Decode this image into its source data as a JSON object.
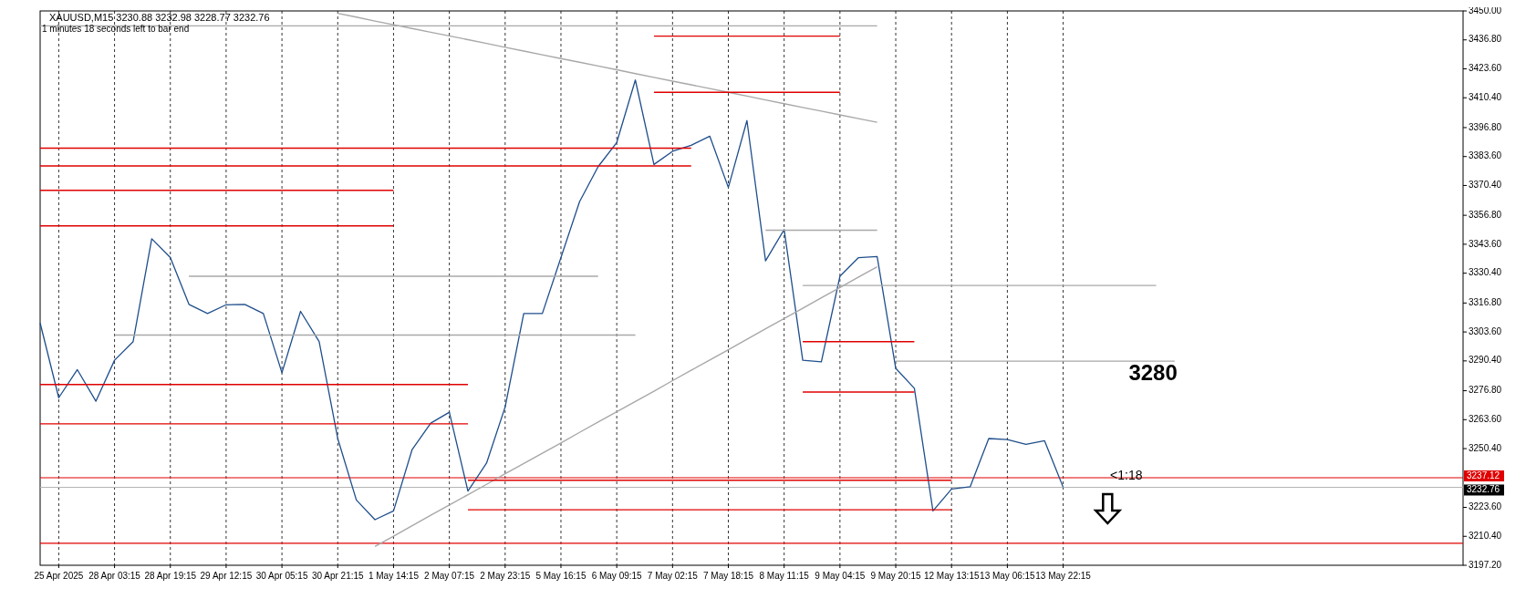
{
  "chart_data": {
    "type": "line",
    "title": "XAUUSD,M15  3230.88 3232.98 3228.77 3232.76",
    "subtitle": "1 minutes 18 seconds left to bar end",
    "categories": [
      null,
      "25 Apr 2025",
      null,
      null,
      "28 Apr 03:15",
      null,
      null,
      "28 Apr 19:15",
      null,
      null,
      "29 Apr 12:15",
      null,
      null,
      "30 Apr 05:15",
      null,
      null,
      "30 Apr 21:15",
      null,
      null,
      "1 May 14:15",
      null,
      null,
      "2 May 07:15",
      null,
      null,
      "2 May 23:15",
      null,
      null,
      "5 May 16:15",
      null,
      null,
      "6 May 09:15",
      null,
      null,
      "7 May 02:15",
      null,
      null,
      "7 May 18:15",
      null,
      null,
      "8 May 11:15",
      null,
      null,
      "9 May 04:15",
      null,
      null,
      "9 May 20:15",
      null,
      null,
      "12 May 13:15",
      null,
      null,
      "13 May 06:15",
      null,
      null,
      "13 May 22:15",
      null,
      null,
      null,
      null,
      null,
      null,
      null,
      null,
      null,
      null,
      null,
      null,
      null,
      null,
      null,
      null,
      null,
      null,
      null,
      null,
      null
    ],
    "ylim": [
      3197.2,
      3450
    ],
    "yticks": [
      {
        "value": 3450,
        "label": "3450.00"
      },
      {
        "value": 3436.8,
        "label": "3436.80"
      },
      {
        "value": 3423.6,
        "label": "3423.60"
      },
      {
        "value": 3410.4,
        "label": "3410.40"
      },
      {
        "value": 3396.8,
        "label": "3396.80"
      },
      {
        "value": 3383.6,
        "label": "3383.60"
      },
      {
        "value": 3370.4,
        "label": "3370.40"
      },
      {
        "value": 3356.8,
        "label": "3356.80"
      },
      {
        "value": 3343.6,
        "label": "3343.60"
      },
      {
        "value": 3330.4,
        "label": "3330.40"
      },
      {
        "value": 3316.8,
        "label": "3316.80"
      },
      {
        "value": 3303.6,
        "label": "3303.60"
      },
      {
        "value": 3290.4,
        "label": "3290.40"
      },
      {
        "value": 3276.8,
        "label": "3276.80"
      },
      {
        "value": 3263.6,
        "label": "3263.60"
      },
      {
        "value": 3250.4,
        "label": "3250.40"
      },
      {
        "value": 3223.6,
        "label": "3223.60"
      },
      {
        "value": 3210.4,
        "label": "3210.40"
      },
      {
        "value": 3197.2,
        "label": "3197.20"
      }
    ],
    "grid": "x",
    "marker": "none",
    "line_style": "solid",
    "ref_lines": [
      {
        "axis": "y",
        "value": 3237.12,
        "label": "3237.12",
        "color": "#e00000"
      },
      {
        "axis": "y",
        "value": 3232.76,
        "label": "3232.76",
        "color": "#b4b4b4"
      },
      {
        "axis": "y",
        "value": 3207.2,
        "label": null,
        "color": "#e00000"
      }
    ],
    "annotations": [
      "3280",
      "<1:18"
    ],
    "series": [
      {
        "color": "#1f4e8c",
        "values": [
          3307.7,
          3273.6,
          3286.4,
          3272,
          3290.7,
          3299.2,
          3346.1,
          3337.5,
          3316.2,
          3312,
          3316,
          3316.2,
          3312,
          3285,
          3313,
          3299.2,
          3255,
          3227,
          3218,
          3222,
          3250,
          3262,
          3267,
          3231,
          3243.8,
          3269.4,
          3312,
          3312,
          3337.5,
          3363,
          3379,
          3390,
          3418.5,
          3380,
          3386,
          3388.7,
          3392.9,
          3369.5,
          3400,
          3336,
          3350.3,
          3290.7,
          3290,
          3329,
          3337.5,
          3338,
          3287,
          3277.9,
          3222,
          3232,
          3233,
          3255,
          3254.5,
          3252.3,
          3254,
          3232.8,
          null,
          null,
          null,
          null,
          null,
          null,
          null,
          null,
          null,
          null,
          null,
          null,
          null,
          null,
          null,
          null,
          null,
          null,
          null,
          null,
          null
        ]
      },
      {
        "color": "#a8a8a8",
        "values": [
          null,
          null,
          null,
          null,
          null,
          null,
          null,
          null,
          null,
          null,
          null,
          null,
          null,
          null,
          null,
          null,
          null,
          null,
          3205.8,
          3210.5,
          3215.2,
          3220,
          3224.7,
          3229.4,
          3234.1,
          3238.9,
          3243.6,
          3248.3,
          3253,
          3257.8,
          3262.5,
          3267.2,
          3271.9,
          3276.6,
          3281.4,
          3286.1,
          3290.8,
          3295.5,
          3300.3,
          3305,
          3309.7,
          3314.4,
          3319.2,
          3323.9,
          3328.6,
          3333.3,
          null,
          null,
          null,
          null,
          null,
          null,
          null,
          null,
          null,
          null,
          null,
          null,
          null,
          null,
          null,
          null,
          null,
          null,
          null,
          null,
          null,
          null,
          null,
          null,
          null,
          null,
          null,
          null,
          null,
          null,
          null
        ]
      },
      {
        "color": "#a8a8a8",
        "values": [
          null,
          null,
          null,
          null,
          null,
          null,
          null,
          null,
          null,
          null,
          null,
          null,
          null,
          null,
          null,
          null,
          3448.9,
          3447.2,
          3445.4,
          3443.7,
          3442,
          3440.3,
          3438.6,
          3436.9,
          3435.2,
          3433.4,
          3431.7,
          3430,
          3428.3,
          3426.6,
          3424.9,
          3423.2,
          3421.4,
          3419.7,
          3418,
          3416.3,
          3414.6,
          3412.9,
          3411.2,
          3409.4,
          3407.7,
          3406,
          3404.3,
          3402.6,
          3400.9,
          3399.2,
          null,
          null,
          null,
          null,
          null,
          null,
          null,
          null,
          null,
          null,
          null,
          null,
          null,
          null,
          null,
          null,
          null,
          null,
          null,
          null,
          null,
          null,
          null,
          null,
          null,
          null,
          null,
          null,
          null,
          null,
          null
        ]
      },
      {
        "color": "#a8a8a8",
        "values": [
          3443.2,
          3443.2,
          3443.2,
          3443.2,
          3443.2,
          3443.2,
          3443.2,
          3443.2,
          3443.2,
          3443.2,
          3443.2,
          3443.2,
          3443.2,
          3443.2,
          3443.2,
          3443.2,
          3443.2,
          3443.2,
          3443.2,
          3443.2,
          3443.2,
          3443.2,
          3443.2,
          3443.2,
          3443.2,
          3443.2,
          3443.2,
          3443.2,
          3443.2,
          3443.2,
          3443.2,
          3443.2,
          3443.2,
          3443.2,
          3443.2,
          3443.2,
          3443.2,
          3443.2,
          3443.2,
          3443.2,
          3443.2,
          3443.2,
          3443.2,
          3443.2,
          3443.2,
          3443.2,
          null,
          null,
          null,
          null,
          null,
          null,
          null,
          null,
          null,
          null,
          null,
          null,
          null,
          null,
          null,
          null,
          null,
          null,
          null,
          null,
          null,
          null,
          null,
          null,
          null,
          null,
          null,
          null,
          null,
          null,
          null
        ]
      },
      {
        "color": "#a8a8a8",
        "values": [
          null,
          null,
          null,
          null,
          3302.2,
          3302.2,
          3302.2,
          3302.2,
          3302.2,
          3302.2,
          3302.2,
          3302.2,
          3302.2,
          3302.2,
          3302.2,
          3302.2,
          3302.2,
          3302.2,
          3302.2,
          3302.2,
          3302.2,
          3302.2,
          3302.2,
          3302.2,
          3302.2,
          3302.2,
          3302.2,
          3302.2,
          3302.2,
          3302.2,
          3302.2,
          3302.2,
          3302.2,
          null,
          null,
          null,
          null,
          null,
          null,
          null,
          null,
          null,
          null,
          null,
          null,
          null,
          null,
          null,
          null,
          null,
          null,
          null,
          null,
          null,
          null,
          null,
          null,
          null,
          null,
          null,
          null,
          null,
          null,
          null,
          null,
          null,
          null,
          null,
          null,
          null,
          null,
          null,
          null,
          null,
          null,
          null,
          null
        ]
      },
      {
        "color": "#a8a8a8",
        "values": [
          null,
          null,
          null,
          null,
          null,
          null,
          null,
          null,
          3329,
          3329,
          3329,
          3329,
          3329,
          3329,
          3329,
          3329,
          3329,
          3329,
          3329,
          3329,
          3329,
          3329,
          3329,
          3329,
          3329,
          3329,
          3329,
          3329,
          3329,
          3329,
          3329,
          null,
          null,
          null,
          null,
          null,
          null,
          null,
          null,
          null,
          null,
          null,
          null,
          null,
          null,
          null,
          null,
          null,
          null,
          null,
          null,
          null,
          null,
          null,
          null,
          null,
          null,
          null,
          null,
          null,
          null,
          null,
          null,
          null,
          null,
          null,
          null,
          null,
          null,
          null,
          null,
          null,
          null,
          null,
          null,
          null,
          null
        ]
      },
      {
        "color": "#a8a8a8",
        "values": [
          null,
          null,
          null,
          null,
          null,
          null,
          null,
          null,
          null,
          null,
          null,
          null,
          null,
          null,
          null,
          null,
          null,
          null,
          null,
          null,
          null,
          null,
          null,
          null,
          null,
          null,
          null,
          null,
          null,
          null,
          null,
          null,
          null,
          null,
          null,
          null,
          null,
          null,
          null,
          3350,
          3350,
          3350,
          3350,
          3350,
          3350,
          3350,
          null,
          null,
          null,
          null,
          null,
          null,
          null,
          null,
          null,
          null,
          null,
          null,
          null,
          null,
          null,
          null,
          null,
          null,
          null,
          null,
          null,
          null,
          null,
          null,
          null,
          null,
          null,
          null,
          null,
          null,
          null
        ]
      },
      {
        "color": "#a8a8a8",
        "values": [
          null,
          null,
          null,
          null,
          null,
          null,
          null,
          null,
          null,
          null,
          null,
          null,
          null,
          null,
          null,
          null,
          null,
          null,
          null,
          null,
          null,
          null,
          null,
          null,
          null,
          null,
          null,
          null,
          null,
          null,
          null,
          null,
          null,
          null,
          null,
          null,
          null,
          null,
          null,
          null,
          null,
          3324.8,
          3324.8,
          3324.8,
          3324.8,
          3324.8,
          3324.8,
          3324.8,
          3324.8,
          3324.8,
          3324.8,
          3324.8,
          3324.8,
          3324.8,
          3324.8,
          3324.8,
          3324.8,
          3324.8,
          3324.8,
          3324.8,
          3324.8,
          null,
          null,
          null,
          null,
          null,
          null,
          null,
          null,
          null,
          null,
          null,
          null,
          null,
          null,
          null,
          null
        ]
      },
      {
        "color": "#a8a8a8",
        "values": [
          null,
          null,
          null,
          null,
          null,
          null,
          null,
          null,
          null,
          null,
          null,
          null,
          null,
          null,
          null,
          null,
          null,
          null,
          null,
          null,
          null,
          null,
          null,
          null,
          null,
          null,
          null,
          null,
          null,
          null,
          null,
          null,
          null,
          null,
          null,
          null,
          null,
          null,
          null,
          null,
          null,
          null,
          null,
          null,
          null,
          null,
          3290.3,
          3290.3,
          3290.3,
          3290.3,
          3290.3,
          3290.3,
          3290.3,
          3290.3,
          3290.3,
          3290.3,
          3290.3,
          3290.3,
          3290.3,
          3290.3,
          3290.3,
          3290.3,
          null,
          null,
          null,
          null,
          null,
          null,
          null,
          null,
          null,
          null,
          null,
          null,
          null,
          null,
          null
        ]
      },
      {
        "color": "#e00000",
        "values": [
          null,
          null,
          null,
          null,
          null,
          null,
          null,
          null,
          null,
          null,
          null,
          null,
          null,
          null,
          null,
          null,
          null,
          null,
          null,
          null,
          null,
          null,
          null,
          null,
          null,
          null,
          null,
          null,
          null,
          null,
          null,
          null,
          null,
          3438.5,
          3438.5,
          3438.5,
          3438.5,
          3438.5,
          3438.5,
          3438.5,
          3438.5,
          3438.5,
          3438.5,
          3438.5,
          null,
          null,
          null,
          null,
          null,
          null,
          null,
          null,
          null,
          null,
          null,
          null,
          null,
          null,
          null,
          null,
          null,
          null,
          null,
          null,
          null,
          null,
          null,
          null,
          null,
          null,
          null,
          null,
          null,
          null,
          null,
          null,
          null
        ]
      },
      {
        "color": "#e00000",
        "values": [
          null,
          null,
          null,
          null,
          null,
          null,
          null,
          null,
          null,
          null,
          null,
          null,
          null,
          null,
          null,
          null,
          null,
          null,
          null,
          null,
          null,
          null,
          null,
          null,
          null,
          null,
          null,
          null,
          null,
          null,
          null,
          null,
          null,
          3412.9,
          3412.9,
          3412.9,
          3412.9,
          3412.9,
          3412.9,
          3412.9,
          3412.9,
          3412.9,
          3412.9,
          3412.9,
          null,
          null,
          null,
          null,
          null,
          null,
          null,
          null,
          null,
          null,
          null,
          null,
          null,
          null,
          null,
          null,
          null,
          null,
          null,
          null,
          null,
          null,
          null,
          null,
          null,
          null,
          null,
          null,
          null,
          null,
          null,
          null,
          null
        ]
      },
      {
        "color": "#e00000",
        "values": [
          3387.4,
          3387.4,
          3387.4,
          3387.4,
          3387.4,
          3387.4,
          3387.4,
          3387.4,
          3387.4,
          3387.4,
          3387.4,
          3387.4,
          3387.4,
          3387.4,
          3387.4,
          3387.4,
          3387.4,
          3387.4,
          3387.4,
          3387.4,
          3387.4,
          3387.4,
          3387.4,
          3387.4,
          3387.4,
          3387.4,
          3387.4,
          3387.4,
          3387.4,
          3387.4,
          3387.4,
          3387.4,
          3387.4,
          3387.4,
          3387.4,
          3387.4,
          null,
          null,
          null,
          null,
          null,
          null,
          null,
          null,
          null,
          null,
          null,
          null,
          null,
          null,
          null,
          null,
          null,
          null,
          null,
          null,
          null,
          null,
          null,
          null,
          null,
          null,
          null,
          null,
          null,
          null,
          null,
          null,
          null,
          null,
          null,
          null,
          null,
          null,
          null,
          null,
          null
        ]
      },
      {
        "color": "#e00000",
        "values": [
          3379.3,
          3379.3,
          3379.3,
          3379.3,
          3379.3,
          3379.3,
          3379.3,
          3379.3,
          3379.3,
          3379.3,
          3379.3,
          3379.3,
          3379.3,
          3379.3,
          3379.3,
          3379.3,
          3379.3,
          3379.3,
          3379.3,
          3379.3,
          3379.3,
          3379.3,
          3379.3,
          3379.3,
          3379.3,
          3379.3,
          3379.3,
          3379.3,
          3379.3,
          3379.3,
          3379.3,
          3379.3,
          3379.3,
          3379.3,
          3379.3,
          3379.3,
          null,
          null,
          null,
          null,
          null,
          null,
          null,
          null,
          null,
          null,
          null,
          null,
          null,
          null,
          null,
          null,
          null,
          null,
          null,
          null,
          null,
          null,
          null,
          null,
          null,
          null,
          null,
          null,
          null,
          null,
          null,
          null,
          null,
          null,
          null,
          null,
          null,
          null,
          null,
          null,
          null
        ]
      },
      {
        "color": "#e00000",
        "values": [
          3368.2,
          3368.2,
          3368.2,
          3368.2,
          3368.2,
          3368.2,
          3368.2,
          3368.2,
          3368.2,
          3368.2,
          3368.2,
          3368.2,
          3368.2,
          3368.2,
          3368.2,
          3368.2,
          3368.2,
          3368.2,
          3368.2,
          3368.2,
          null,
          null,
          null,
          null,
          null,
          null,
          null,
          null,
          null,
          null,
          null,
          null,
          null,
          null,
          null,
          null,
          null,
          null,
          null,
          null,
          null,
          null,
          null,
          null,
          null,
          null,
          null,
          null,
          null,
          null,
          null,
          null,
          null,
          null,
          null,
          null,
          null,
          null,
          null,
          null,
          null,
          null,
          null,
          null,
          null,
          null,
          null,
          null,
          null,
          null,
          null,
          null,
          null,
          null,
          null,
          null,
          null
        ]
      },
      {
        "color": "#e00000",
        "values": [
          3352,
          3352,
          3352,
          3352,
          3352,
          3352,
          3352,
          3352,
          3352,
          3352,
          3352,
          3352,
          3352,
          3352,
          3352,
          3352,
          3352,
          3352,
          3352,
          3352,
          null,
          null,
          null,
          null,
          null,
          null,
          null,
          null,
          null,
          null,
          null,
          null,
          null,
          null,
          null,
          null,
          null,
          null,
          null,
          null,
          null,
          null,
          null,
          null,
          null,
          null,
          null,
          null,
          null,
          null,
          null,
          null,
          null,
          null,
          null,
          null,
          null,
          null,
          null,
          null,
          null,
          null,
          null,
          null,
          null,
          null,
          null,
          null,
          null,
          null,
          null,
          null,
          null,
          null,
          null,
          null,
          null
        ]
      },
      {
        "color": "#e00000",
        "values": [
          3279.6,
          3279.6,
          3279.6,
          3279.6,
          3279.6,
          3279.6,
          3279.6,
          3279.6,
          3279.6,
          3279.6,
          3279.6,
          3279.6,
          3279.6,
          3279.6,
          3279.6,
          3279.6,
          3279.6,
          3279.6,
          3279.6,
          3279.6,
          3279.6,
          3279.6,
          3279.6,
          3279.6,
          null,
          null,
          null,
          null,
          null,
          null,
          null,
          null,
          null,
          null,
          null,
          null,
          null,
          null,
          null,
          null,
          null,
          null,
          null,
          null,
          null,
          null,
          null,
          null,
          null,
          null,
          null,
          null,
          null,
          null,
          null,
          null,
          null,
          null,
          null,
          null,
          null,
          null,
          null,
          null,
          null,
          null,
          null,
          null,
          null,
          null,
          null,
          null,
          null,
          null,
          null,
          null,
          null
        ]
      },
      {
        "color": "#e00000",
        "values": [
          3261.7,
          3261.7,
          3261.7,
          3261.7,
          3261.7,
          3261.7,
          3261.7,
          3261.7,
          3261.7,
          3261.7,
          3261.7,
          3261.7,
          3261.7,
          3261.7,
          3261.7,
          3261.7,
          3261.7,
          3261.7,
          3261.7,
          3261.7,
          3261.7,
          3261.7,
          3261.7,
          3261.7,
          null,
          null,
          null,
          null,
          null,
          null,
          null,
          null,
          null,
          null,
          null,
          null,
          null,
          null,
          null,
          null,
          null,
          null,
          null,
          null,
          null,
          null,
          null,
          null,
          null,
          null,
          null,
          null,
          null,
          null,
          null,
          null,
          null,
          null,
          null,
          null,
          null,
          null,
          null,
          null,
          null,
          null,
          null,
          null,
          null,
          null,
          null,
          null,
          null,
          null,
          null,
          null,
          null
        ]
      },
      {
        "color": "#e00000",
        "values": [
          null,
          null,
          null,
          null,
          null,
          null,
          null,
          null,
          null,
          null,
          null,
          null,
          null,
          null,
          null,
          null,
          null,
          null,
          null,
          null,
          null,
          null,
          null,
          null,
          null,
          null,
          null,
          null,
          null,
          null,
          null,
          null,
          null,
          null,
          null,
          null,
          null,
          null,
          null,
          null,
          null,
          3299.2,
          3299.2,
          3299.2,
          3299.2,
          3299.2,
          3299.2,
          3299.2,
          null,
          null,
          null,
          null,
          null,
          null,
          null,
          null,
          null,
          null,
          null,
          null,
          null,
          null,
          null,
          null,
          null,
          null,
          null,
          null,
          null,
          null,
          null,
          null,
          null,
          null,
          null,
          null,
          null
        ]
      },
      {
        "color": "#e00000",
        "values": [
          null,
          null,
          null,
          null,
          null,
          null,
          null,
          null,
          null,
          null,
          null,
          null,
          null,
          null,
          null,
          null,
          null,
          null,
          null,
          null,
          null,
          null,
          null,
          null,
          null,
          null,
          null,
          null,
          null,
          null,
          null,
          null,
          null,
          null,
          null,
          null,
          null,
          null,
          null,
          null,
          null,
          3276.2,
          3276.2,
          3276.2,
          3276.2,
          3276.2,
          3276.2,
          3276.2,
          null,
          null,
          null,
          null,
          null,
          null,
          null,
          null,
          null,
          null,
          null,
          null,
          null,
          null,
          null,
          null,
          null,
          null,
          null,
          null,
          null,
          null,
          null,
          null,
          null,
          null,
          null,
          null,
          null
        ]
      },
      {
        "color": "#e00000",
        "values": [
          null,
          null,
          null,
          null,
          null,
          null,
          null,
          null,
          null,
          null,
          null,
          null,
          null,
          null,
          null,
          null,
          null,
          null,
          null,
          null,
          null,
          null,
          null,
          3236,
          3236,
          3236,
          3236,
          3236,
          3236,
          3236,
          3236,
          3236,
          3236,
          3236,
          3236,
          3236,
          3236,
          3236,
          3236,
          3236,
          3236,
          3236,
          3236,
          3236,
          3236,
          3236,
          3236,
          3236,
          3236,
          3236,
          null,
          null,
          null,
          null,
          null,
          null,
          null,
          null,
          null,
          null,
          null,
          null,
          null,
          null,
          null,
          null,
          null,
          null,
          null,
          null,
          null,
          null,
          null,
          null,
          null,
          null,
          null
        ]
      },
      {
        "color": "#e00000",
        "values": [
          null,
          null,
          null,
          null,
          null,
          null,
          null,
          null,
          null,
          null,
          null,
          null,
          null,
          null,
          null,
          null,
          null,
          null,
          null,
          null,
          null,
          null,
          null,
          3222.5,
          3222.5,
          3222.5,
          3222.5,
          3222.5,
          3222.5,
          3222.5,
          3222.5,
          3222.5,
          3222.5,
          3222.5,
          3222.5,
          3222.5,
          3222.5,
          3222.5,
          3222.5,
          3222.5,
          3222.5,
          3222.5,
          3222.5,
          3222.5,
          3222.5,
          3222.5,
          3222.5,
          3222.5,
          3222.5,
          3222.5,
          null,
          null,
          null,
          null,
          null,
          null,
          null,
          null,
          null,
          null,
          null,
          null,
          null,
          null,
          null,
          null,
          null,
          null,
          null,
          null,
          null,
          null,
          null,
          null,
          null,
          null,
          null
        ]
      }
    ]
  }
}
